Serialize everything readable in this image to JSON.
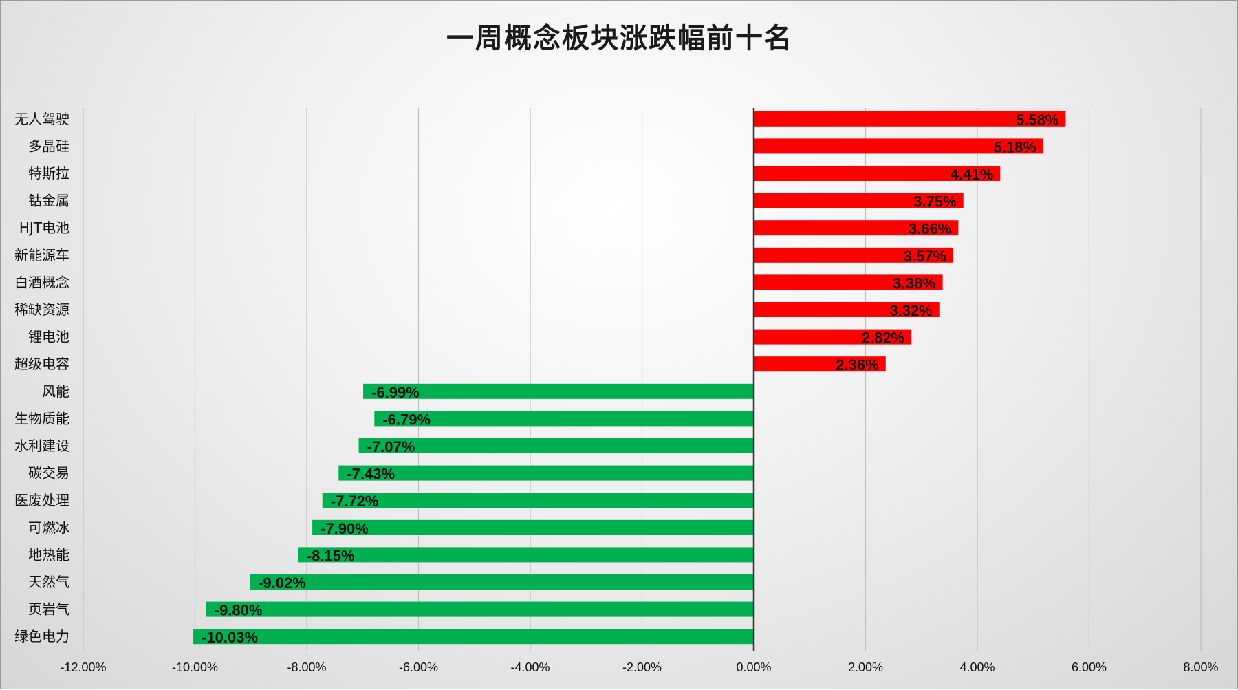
{
  "chart_data": {
    "type": "bar",
    "orientation": "horizontal",
    "title": "一周概念板块涨跌幅前十名",
    "categories": [
      "无人驾驶",
      "多晶硅",
      "特斯拉",
      "钴金属",
      "HJT电池",
      "新能源车",
      "白酒概念",
      "稀缺资源",
      "锂电池",
      "超级电容",
      "风能",
      "生物质能",
      "水利建设",
      "碳交易",
      "医废处理",
      "可燃冰",
      "地热能",
      "天然气",
      "页岩气",
      "绿色电力"
    ],
    "values": [
      5.58,
      5.18,
      4.41,
      3.75,
      3.66,
      3.57,
      3.38,
      3.32,
      2.82,
      2.36,
      -6.99,
      -6.79,
      -7.07,
      -7.43,
      -7.72,
      -7.9,
      -8.15,
      -9.02,
      -9.8,
      -10.03
    ],
    "data_labels": [
      "5.58%",
      "5.18%",
      "4.41%",
      "3.75%",
      "3.66%",
      "3.57%",
      "3.38%",
      "3.32%",
      "2.82%",
      "2.36%",
      "-6.99%",
      "-6.79%",
      "-7.07%",
      "-7.43%",
      "-7.72%",
      "-7.90%",
      "-8.15%",
      "-9.02%",
      "-9.80%",
      "-10.03%"
    ],
    "x_ticks": [
      -12,
      -10,
      -8,
      -6,
      -4,
      -2,
      0,
      2,
      4,
      6,
      8
    ],
    "x_tick_labels": [
      "-12.00%",
      "-10.00%",
      "-8.00%",
      "-6.00%",
      "-4.00%",
      "-2.00%",
      "0.00%",
      "2.00%",
      "4.00%",
      "6.00%",
      "8.00%"
    ],
    "xlim": [
      -12,
      8
    ],
    "unit": "%",
    "grid": "vertical",
    "colors": {
      "positive": "#ff0000",
      "negative": "#00b050",
      "axis": "#333333",
      "grid": "#bfbfbf"
    }
  }
}
